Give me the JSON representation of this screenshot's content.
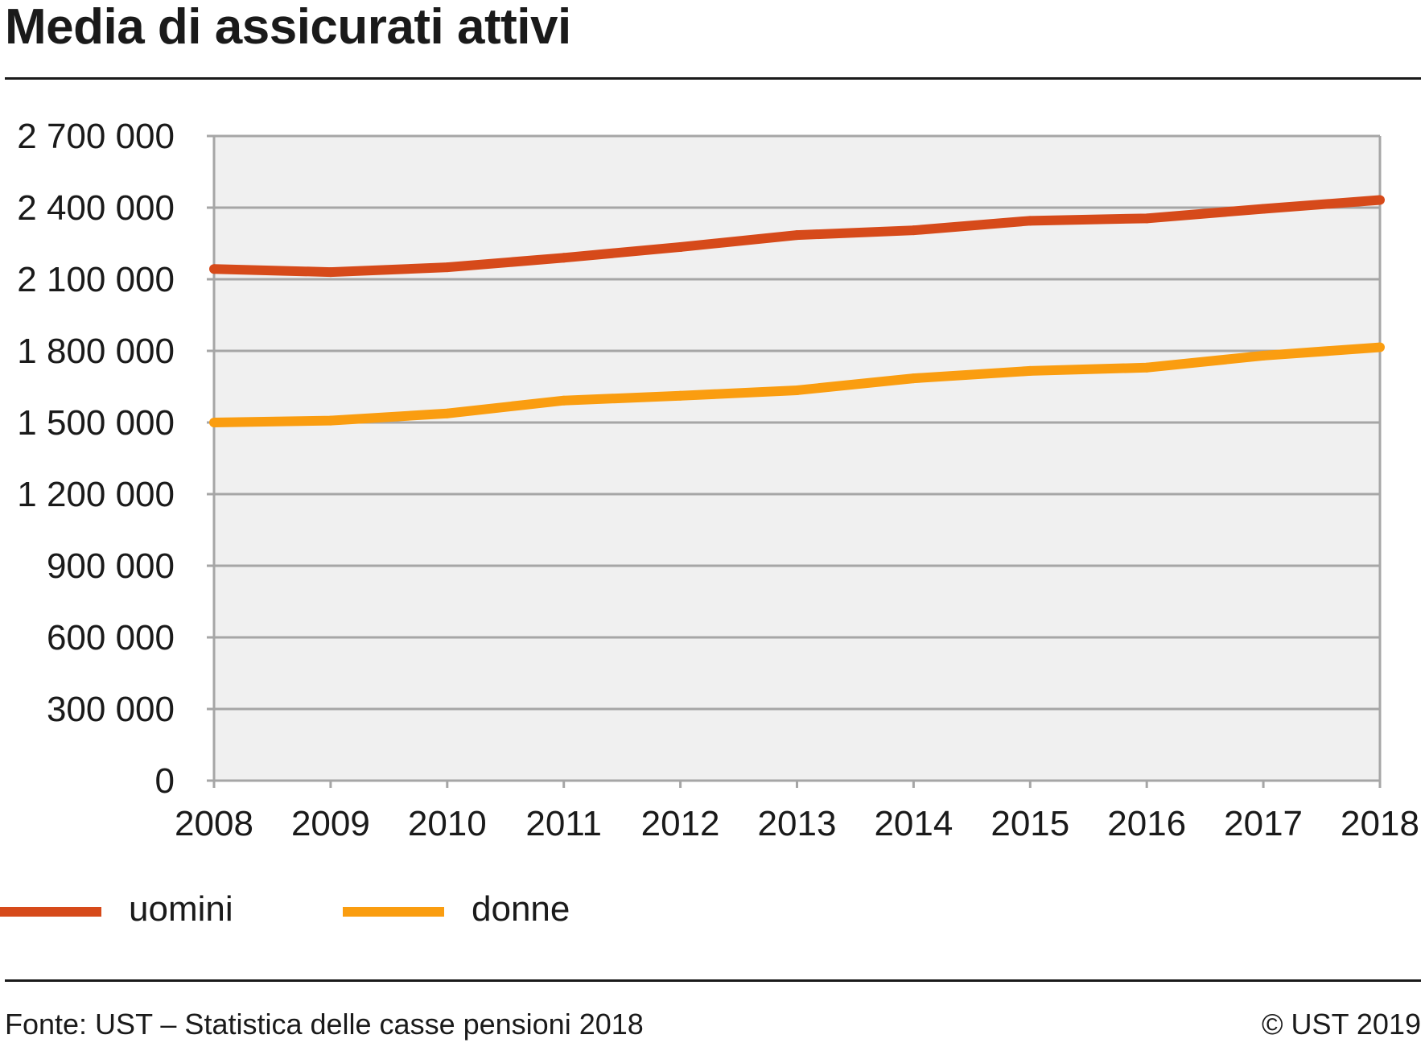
{
  "header": {
    "title": "Media di assicurati attivi"
  },
  "footer": {
    "source": "Fonte: UST – Statistica delle casse pensioni 2018",
    "copyright": "© UST 2019"
  },
  "chart_data": {
    "type": "line",
    "title": "Media di assicurati attivi",
    "xlabel": "",
    "ylabel": "",
    "categories": [
      "2008",
      "2009",
      "2010",
      "2011",
      "2012",
      "2013",
      "2014",
      "2015",
      "2016",
      "2017",
      "2018"
    ],
    "y_ticks": [
      0,
      300000,
      600000,
      900000,
      1200000,
      1500000,
      1800000,
      2100000,
      2400000,
      2700000
    ],
    "y_tick_labels": [
      "0",
      "300 000",
      "600 000",
      "900 000",
      "1 200 000",
      "1 500 000",
      "1 800 000",
      "2 100 000",
      "2 400 000",
      "2 700 000"
    ],
    "ylim": [
      0,
      2700000
    ],
    "grid": true,
    "legend": "bottom",
    "background_color": "#f0f0f0",
    "series": [
      {
        "name": "uomini",
        "color": "#d64a1a",
        "values": [
          2143000,
          2130000,
          2150000,
          2190000,
          2235000,
          2285000,
          2305000,
          2345000,
          2355000,
          2395000,
          2432000
        ]
      },
      {
        "name": "donne",
        "color": "#fa9d10",
        "values": [
          1500000,
          1508000,
          1538000,
          1592000,
          1612000,
          1635000,
          1685000,
          1716000,
          1730000,
          1780000,
          1815000
        ]
      }
    ]
  }
}
